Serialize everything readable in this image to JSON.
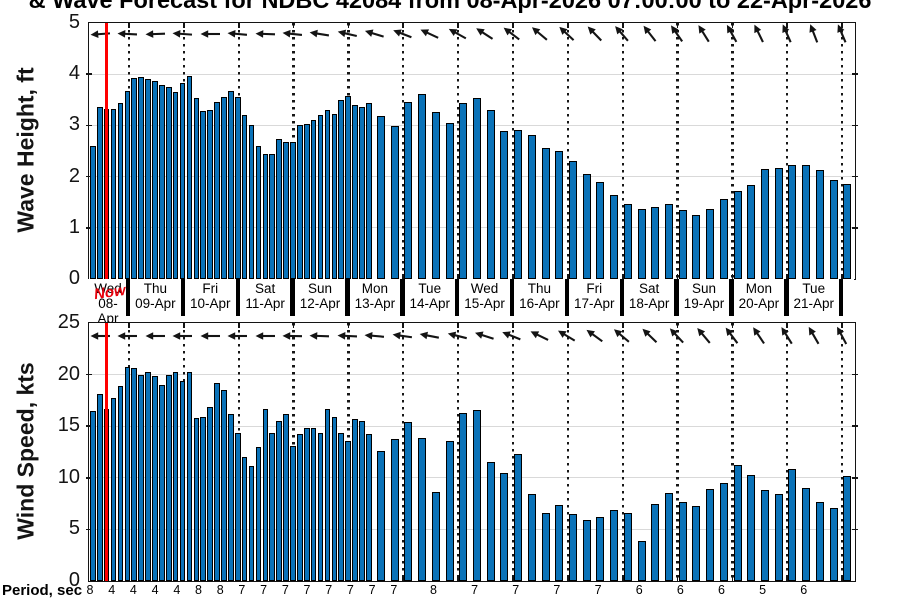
{
  "title": "& Wave Forecast for NDBC 42084 from 08-Apr-2026 07:00:00 to 22-Apr-2026",
  "now_label": "Now",
  "period_axis": {
    "label": "Period, sec"
  },
  "colors": {
    "bar": "#0A72B8",
    "bar_edge": "#000000",
    "now_line": "#FF0000",
    "now_text": "#E8000B",
    "grid": "#D9D9D9",
    "axis": "#141414"
  },
  "day_labels": [
    {
      "day": "Wed",
      "date": "08-Apr"
    },
    {
      "day": "Thu",
      "date": "09-Apr"
    },
    {
      "day": "Fri",
      "date": "10-Apr"
    },
    {
      "day": "Sat",
      "date": "11-Apr"
    },
    {
      "day": "Sun",
      "date": "12-Apr"
    },
    {
      "day": "Mon",
      "date": "13-Apr"
    },
    {
      "day": "Tue",
      "date": "14-Apr"
    },
    {
      "day": "Wed",
      "date": "15-Apr"
    },
    {
      "day": "Thu",
      "date": "16-Apr"
    },
    {
      "day": "Fri",
      "date": "17-Apr"
    },
    {
      "day": "Sat",
      "date": "18-Apr"
    },
    {
      "day": "Sun",
      "date": "19-Apr"
    },
    {
      "day": "Mon",
      "date": "20-Apr"
    },
    {
      "day": "Tue",
      "date": "21-Apr"
    }
  ],
  "chart_data": [
    {
      "type": "bar",
      "name": "wave-height",
      "ylabel": "Wave Height, ft",
      "ylim": [
        0,
        5
      ],
      "yticks": [
        0,
        1,
        2,
        3,
        4,
        5
      ],
      "gridlines": [
        1,
        2,
        3,
        4
      ],
      "grid": true,
      "dense_bars": 41,
      "dense_step_hours": 3,
      "sparse_step_hours": 6,
      "values": [
        2.6,
        3.35,
        3.33,
        3.32,
        3.43,
        3.67,
        3.92,
        3.94,
        3.9,
        3.86,
        3.79,
        3.76,
        3.66,
        3.83,
        3.97,
        3.53,
        3.28,
        3.3,
        3.45,
        3.55,
        3.67,
        3.55,
        3.2,
        3.0,
        2.6,
        2.45,
        2.45,
        2.73,
        2.68,
        2.68,
        3.0,
        3.02,
        3.1,
        3.2,
        3.3,
        3.22,
        3.5,
        3.58,
        3.4,
        3.35,
        3.43,
        3.19,
        2.99,
        3.45,
        3.62,
        3.26,
        3.05,
        3.43,
        3.53,
        3.3,
        2.9,
        2.92,
        2.82,
        2.56,
        2.5,
        2.3,
        2.05,
        1.9,
        1.65,
        1.46,
        1.36,
        1.41,
        1.46,
        1.34,
        1.25,
        1.36,
        1.56,
        1.71,
        1.84,
        2.14,
        2.16,
        2.22,
        2.22,
        2.12,
        1.93,
        1.85
      ],
      "arrow_rotations": [
        -4,
        3,
        -2,
        4,
        0,
        5,
        2,
        6,
        9,
        13,
        17,
        21,
        25,
        29,
        33,
        37,
        40,
        43,
        46,
        49,
        52,
        55,
        58,
        61,
        64,
        66,
        69,
        67
      ]
    },
    {
      "type": "bar",
      "name": "wind-speed",
      "ylabel": "Wind Speed, kts",
      "ylim": [
        0,
        25
      ],
      "yticks": [
        0,
        5,
        10,
        15,
        20,
        25
      ],
      "gridlines": [
        5,
        10,
        15,
        20
      ],
      "grid": true,
      "dense_bars": 41,
      "dense_step_hours": 3,
      "sparse_step_hours": 6,
      "values": [
        16.5,
        18.1,
        16.7,
        17.7,
        18.9,
        20.7,
        20.6,
        20.0,
        20.3,
        19.9,
        19.0,
        20.0,
        20.3,
        19.4,
        20.3,
        15.8,
        15.9,
        16.9,
        19.2,
        18.5,
        16.2,
        14.3,
        12.0,
        11.1,
        13.0,
        16.7,
        14.3,
        15.5,
        16.2,
        13.1,
        14.2,
        14.8,
        14.8,
        14.3,
        16.7,
        15.9,
        14.3,
        13.6,
        15.7,
        15.5,
        14.2,
        12.6,
        13.8,
        15.4,
        13.9,
        8.6,
        13.6,
        16.3,
        16.6,
        11.5,
        10.5,
        12.3,
        8.4,
        6.6,
        7.4,
        6.5,
        5.9,
        6.2,
        6.9,
        6.6,
        3.9,
        7.5,
        8.5,
        7.7,
        7.3,
        8.9,
        9.5,
        11.2,
        10.3,
        8.8,
        8.4,
        10.9,
        9.0,
        7.7,
        7.1,
        10.2
      ],
      "arrow_rotations": [
        0,
        0,
        0,
        0,
        0,
        0,
        0,
        1,
        2,
        3,
        5,
        8,
        11,
        14,
        18,
        22,
        26,
        31,
        36,
        40,
        44,
        47,
        50,
        53,
        56,
        58,
        60,
        62
      ]
    }
  ],
  "period_labels": {
    "dense": [
      8,
      4,
      4,
      4,
      4,
      8,
      8,
      7,
      7,
      7,
      7,
      7,
      7,
      7,
      7
    ],
    "sparse": [
      8,
      7,
      7,
      7,
      7,
      6,
      6,
      6,
      5,
      6
    ]
  }
}
